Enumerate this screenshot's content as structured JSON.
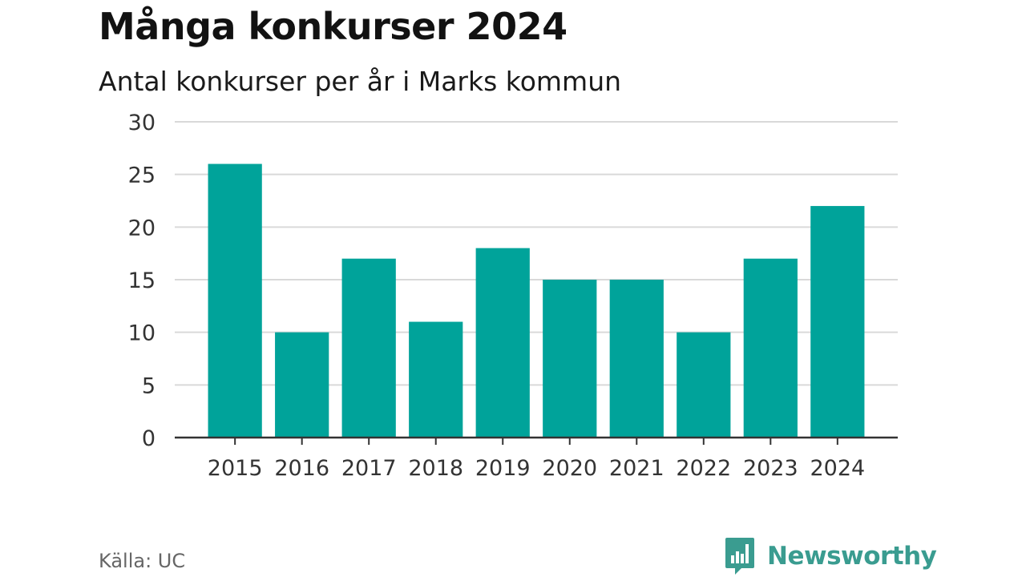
{
  "header": {
    "title": "Många konkurser 2024",
    "subtitle": "Antal konkurser per år i Marks kommun"
  },
  "footer": {
    "source": "Källa: UC",
    "brand": "Newsworthy"
  },
  "colors": {
    "bar": "#00a39a",
    "grid": "#d9d9d9",
    "axis": "#333333",
    "tick_text": "#333333",
    "brand": "#3a9c90"
  },
  "chart_data": {
    "type": "bar",
    "categories": [
      "2015",
      "2016",
      "2017",
      "2018",
      "2019",
      "2020",
      "2021",
      "2022",
      "2023",
      "2024"
    ],
    "values": [
      26,
      10,
      17,
      11,
      18,
      15,
      15,
      10,
      17,
      22
    ],
    "title": "Många konkurser 2024",
    "subtitle": "Antal konkurser per år i Marks kommun",
    "xlabel": "",
    "ylabel": "",
    "ylim": [
      0,
      30
    ],
    "yticks": [
      0,
      5,
      10,
      15,
      20,
      25,
      30
    ],
    "grid": true,
    "legend": "none"
  }
}
